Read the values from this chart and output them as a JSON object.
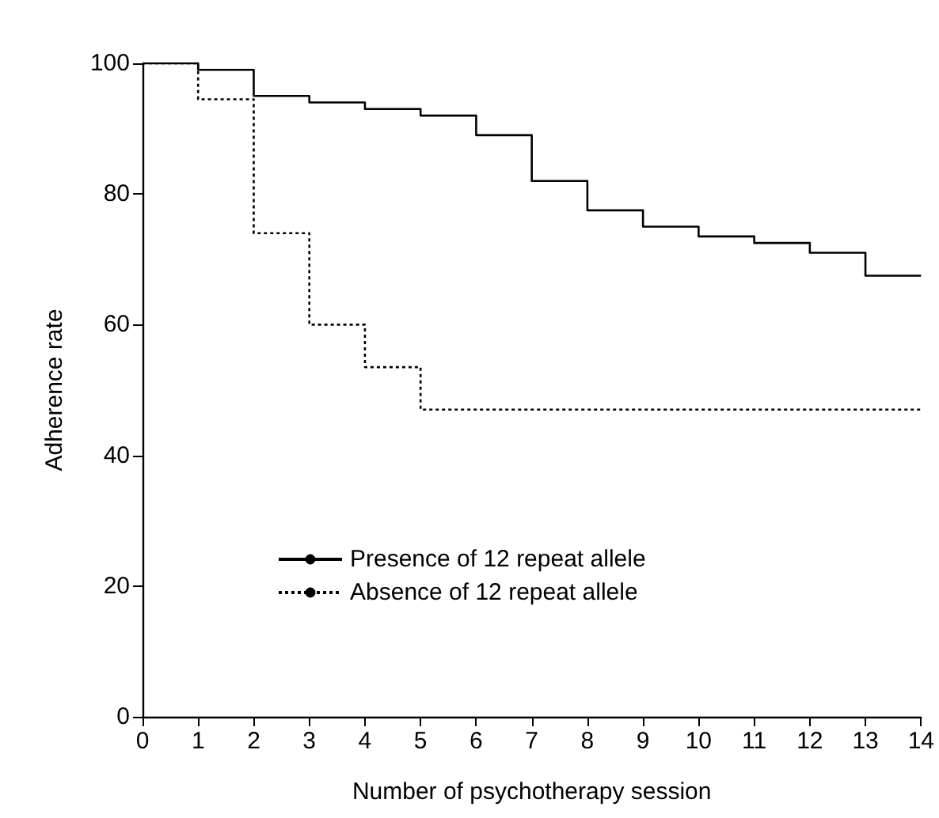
{
  "chart_data": {
    "type": "step",
    "xlabel": "Number of psychotherapy session",
    "ylabel": "Adherence rate",
    "x": [
      0,
      1,
      2,
      3,
      4,
      5,
      6,
      7,
      8,
      9,
      10,
      11,
      12,
      13,
      14
    ],
    "series": [
      {
        "name": "Presence of 12 repeat allele",
        "color": "#000000",
        "line_style": "solid",
        "values": [
          100,
          99,
          95,
          94,
          93,
          92,
          89,
          82,
          77.5,
          75,
          73.5,
          72.5,
          71,
          67.5,
          67.5
        ]
      },
      {
        "name": "Absence of 12 repeat allele",
        "color": "#000000",
        "line_style": "dotted",
        "values": [
          100,
          94.5,
          74,
          60,
          53.5,
          47,
          47,
          47,
          47,
          47,
          47,
          47,
          47,
          47,
          47
        ]
      }
    ],
    "xlim": [
      0,
      14
    ],
    "xticks": [
      0,
      1,
      2,
      3,
      4,
      5,
      6,
      7,
      8,
      9,
      10,
      11,
      12,
      13,
      14
    ],
    "ylim": [
      0,
      100
    ],
    "yticks": [
      0,
      20,
      40,
      60,
      80,
      100
    ],
    "grid": false,
    "legend": "bottom",
    "marker": "none"
  }
}
